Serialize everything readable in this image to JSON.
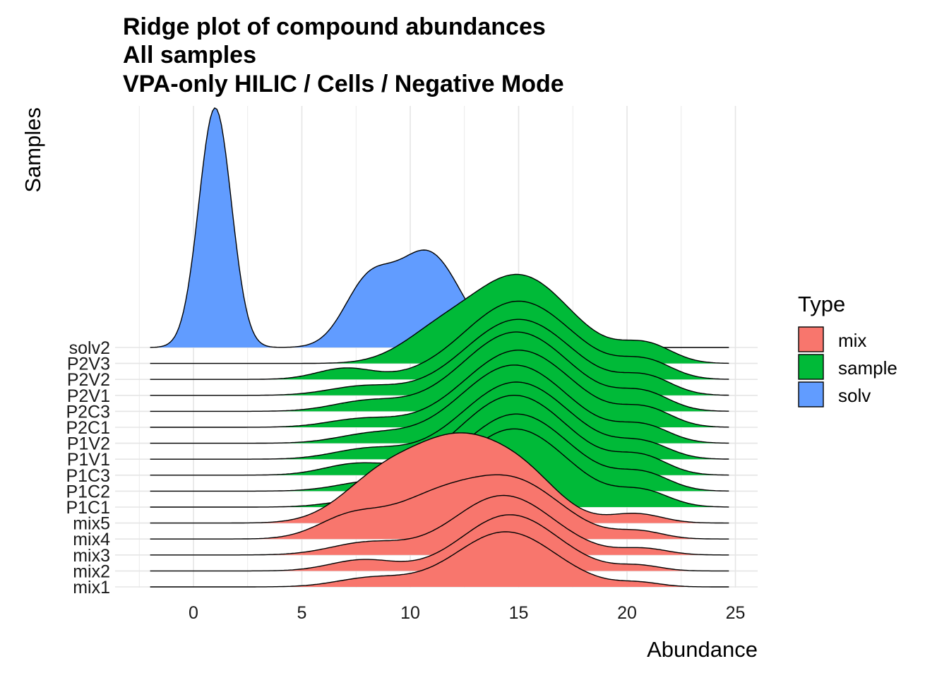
{
  "chart_data": {
    "type": "area",
    "subtype": "ridgeline",
    "title": [
      "Ridge plot of compound abundances",
      "All samples",
      "VPA-only HILIC / Cells / Negative Mode"
    ],
    "xlabel": "Abundance",
    "ylabel": "Samples",
    "xlim": [
      -3.5,
      26
    ],
    "x_ticks": [
      0,
      5,
      10,
      15,
      20,
      25
    ],
    "x_tick_labels": [
      "0",
      "5",
      "10",
      "15",
      "20",
      "25"
    ],
    "grid": true,
    "legend": {
      "title": "Type",
      "position": "right",
      "entries": [
        {
          "label": "mix",
          "color": "#F8766D"
        },
        {
          "label": "sample",
          "color": "#00BA38"
        },
        {
          "label": "solv",
          "color": "#619CFF"
        }
      ]
    },
    "x_range": [
      -2,
      24.7
    ],
    "samples": [
      "mix1",
      "mix2",
      "mix3",
      "mix4",
      "mix5",
      "P1C1",
      "P1C2",
      "P1C3",
      "P1V1",
      "P1V2",
      "P2C1",
      "P2C3",
      "P2V1",
      "P2V2",
      "P2V3",
      "solv2"
    ],
    "series": [
      {
        "name": "mix1",
        "type": "mix",
        "components": [
          [
            8.2,
            1.6,
            0.16
          ],
          [
            14.4,
            2.3,
            1.0
          ],
          [
            20.6,
            1.0,
            0.07
          ]
        ]
      },
      {
        "name": "mix2",
        "type": "mix",
        "components": [
          [
            7.8,
            1.5,
            0.2
          ],
          [
            14.6,
            2.2,
            1.02
          ],
          [
            20.6,
            1.0,
            0.09
          ]
        ]
      },
      {
        "name": "mix3",
        "type": "mix",
        "components": [
          [
            8.0,
            1.7,
            0.22
          ],
          [
            14.3,
            2.3,
            1.08
          ],
          [
            20.8,
            1.1,
            0.11
          ]
        ]
      },
      {
        "name": "mix4",
        "type": "mix",
        "components": [
          [
            7.2,
            1.5,
            0.38
          ],
          [
            11.0,
            2.0,
            0.65
          ],
          [
            14.8,
            2.2,
            1.02
          ],
          [
            20.6,
            1.1,
            0.13
          ]
        ]
      },
      {
        "name": "mix5",
        "type": "mix",
        "components": [
          [
            8.5,
            1.8,
            0.65
          ],
          [
            12.3,
            2.3,
            1.5
          ],
          [
            15.5,
            1.6,
            0.5
          ],
          [
            20.4,
            1.2,
            0.17
          ]
        ]
      },
      {
        "name": "P1C1",
        "type": "sample",
        "components": [
          [
            7.8,
            1.5,
            0.12
          ],
          [
            14.8,
            2.5,
            1.42
          ],
          [
            20.8,
            1.2,
            0.25
          ]
        ]
      },
      {
        "name": "P1C2",
        "type": "sample",
        "components": [
          [
            8.2,
            1.6,
            0.16
          ],
          [
            14.9,
            2.5,
            1.4
          ],
          [
            20.8,
            1.2,
            0.28
          ]
        ]
      },
      {
        "name": "P1C3",
        "type": "sample",
        "components": [
          [
            7.5,
            1.5,
            0.2
          ],
          [
            14.8,
            2.5,
            1.45
          ],
          [
            20.7,
            1.2,
            0.3
          ]
        ]
      },
      {
        "name": "P1V1",
        "type": "sample",
        "components": [
          [
            8.0,
            1.6,
            0.18
          ],
          [
            14.9,
            2.5,
            1.4
          ],
          [
            20.8,
            1.2,
            0.26
          ]
        ]
      },
      {
        "name": "P1V2",
        "type": "sample",
        "components": [
          [
            8.2,
            1.6,
            0.16
          ],
          [
            14.8,
            2.5,
            1.42
          ],
          [
            20.8,
            1.2,
            0.28
          ]
        ]
      },
      {
        "name": "P2C1",
        "type": "sample",
        "components": [
          [
            7.8,
            1.6,
            0.15
          ],
          [
            15.0,
            2.5,
            1.4
          ],
          [
            20.9,
            1.2,
            0.3
          ]
        ]
      },
      {
        "name": "P2C3",
        "type": "sample",
        "components": [
          [
            8.0,
            1.6,
            0.18
          ],
          [
            14.9,
            2.5,
            1.44
          ],
          [
            20.8,
            1.2,
            0.3
          ]
        ]
      },
      {
        "name": "P2V1",
        "type": "sample",
        "components": [
          [
            7.8,
            1.6,
            0.16
          ],
          [
            15.0,
            2.5,
            1.38
          ],
          [
            20.9,
            1.2,
            0.3
          ]
        ]
      },
      {
        "name": "P2V2",
        "type": "sample",
        "components": [
          [
            7.0,
            1.3,
            0.2
          ],
          [
            15.0,
            2.5,
            1.42
          ],
          [
            20.9,
            1.2,
            0.3
          ]
        ]
      },
      {
        "name": "P2V3",
        "type": "sample",
        "components": [
          [
            11.0,
            1.6,
            0.35
          ],
          [
            15.0,
            2.4,
            1.6
          ],
          [
            20.9,
            1.2,
            0.32
          ]
        ]
      },
      {
        "name": "solv2",
        "type": "solv",
        "components": [
          [
            1.0,
            0.75,
            4.35
          ],
          [
            8.0,
            1.1,
            1.05
          ],
          [
            10.8,
            1.5,
            1.72
          ]
        ]
      }
    ]
  }
}
